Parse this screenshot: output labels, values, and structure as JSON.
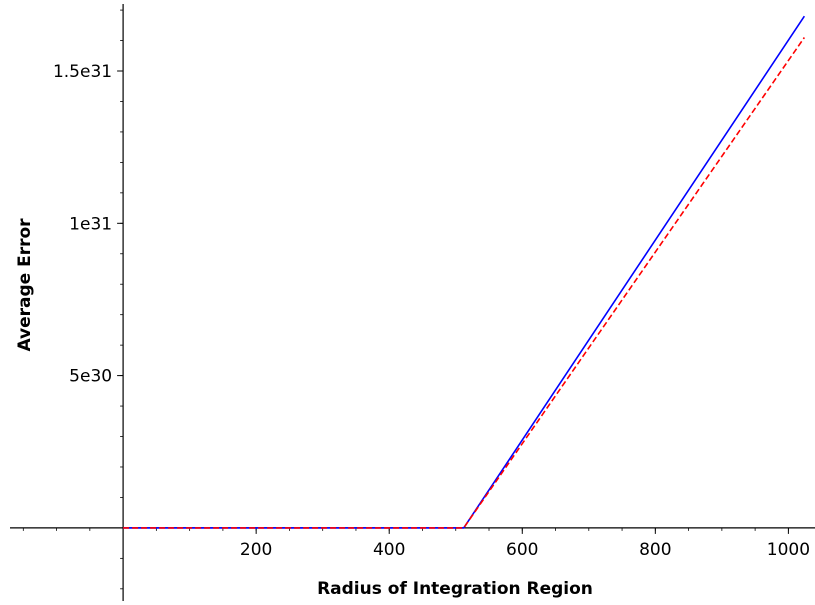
{
  "chart_data": {
    "type": "line",
    "title": "",
    "xlabel": "Radius of Integration Region",
    "ylabel": "Average Error",
    "xlim": [
      -170,
      1040
    ],
    "ylim": [
      -2.4e+30,
      1.72e+31
    ],
    "x_ticks": [
      {
        "value": 200,
        "label": "200"
      },
      {
        "value": 400,
        "label": "400"
      },
      {
        "value": 600,
        "label": "600"
      },
      {
        "value": 800,
        "label": "800"
      },
      {
        "value": 1000,
        "label": "1000"
      }
    ],
    "y_ticks": [
      {
        "value": 5e+30,
        "label": "5e30"
      },
      {
        "value": 1e+31,
        "label": "1e31"
      },
      {
        "value": 1.5e+31,
        "label": "1.5e31"
      }
    ],
    "x_minor_step": 50,
    "y_minor_step": 1e+30,
    "grid": false,
    "legend": "none",
    "series": [
      {
        "color": "#0000ff",
        "style": "solid",
        "x": [
          0,
          512,
          1024
        ],
        "y": [
          0,
          0,
          1.68e+31
        ]
      },
      {
        "color": "#ff0000",
        "style": "dashed",
        "x": [
          0,
          512,
          1024
        ],
        "y": [
          0,
          0,
          1.61e+31
        ]
      }
    ]
  }
}
